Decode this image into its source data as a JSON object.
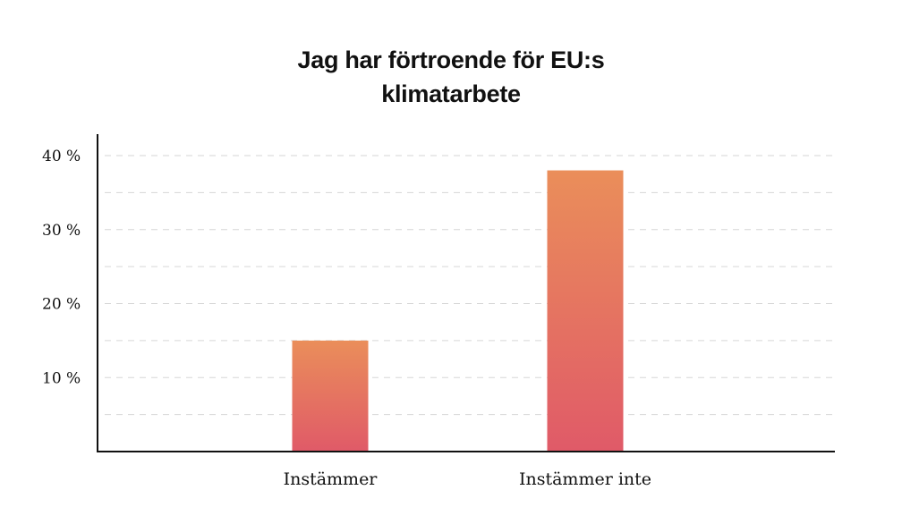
{
  "chart_data": {
    "type": "bar",
    "title_lines": [
      "Jag har förtroende för EU:s",
      "klimatarbete"
    ],
    "categories": [
      "Instämmer",
      "Instämmer inte"
    ],
    "values": [
      15,
      38
    ],
    "ylim": [
      0,
      40
    ],
    "yticks": [
      10,
      20,
      30,
      40
    ],
    "ytick_labels": [
      "10 %",
      "20 %",
      "30 %",
      "40 %"
    ],
    "grid": true,
    "colors": {
      "bar_top": "#EA8E5A",
      "bar_bottom": "#E05A68",
      "axis": "#111111",
      "grid": "#D6D6D6"
    }
  }
}
